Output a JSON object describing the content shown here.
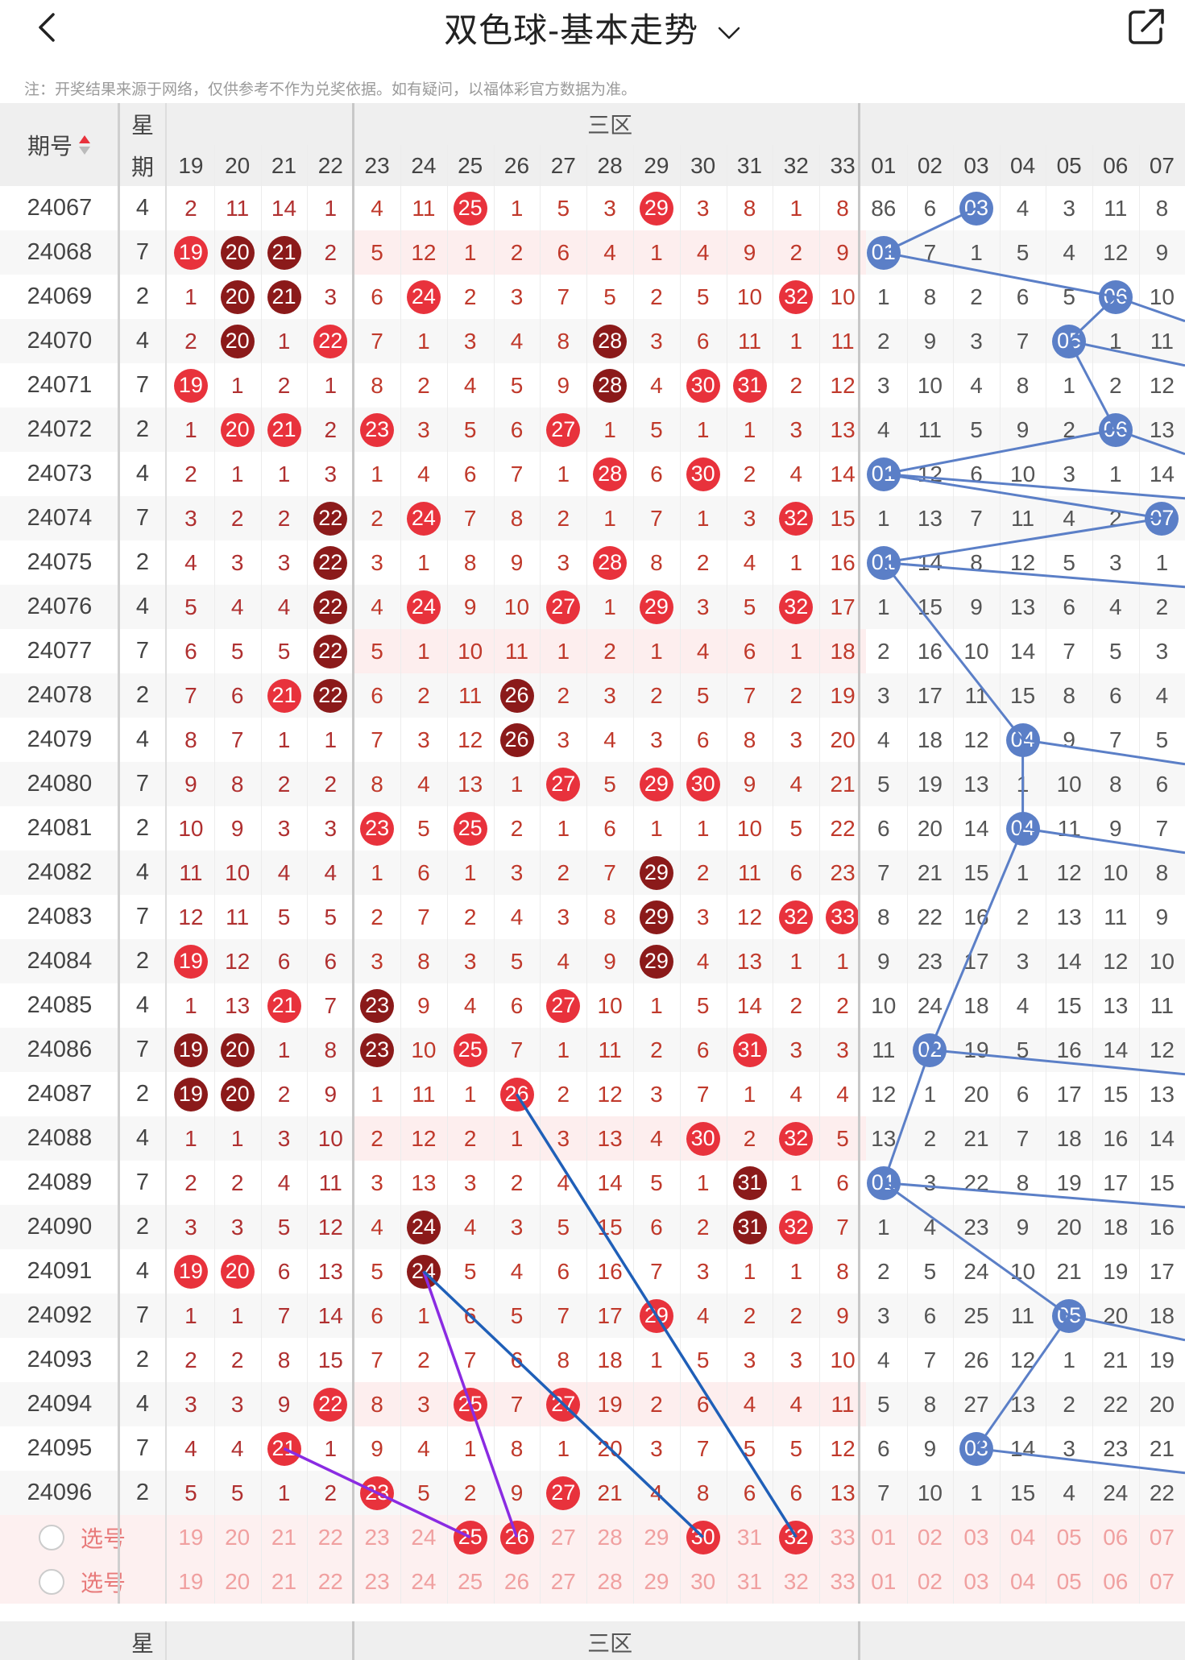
{
  "header": {
    "title": "双色球-基本走势",
    "back_icon": "chevron-left-icon",
    "share_icon": "share-icon",
    "dropdown_icon": "chevron-down-icon"
  },
  "note": "注：开奖结果来源于网络，仅供参考不作为兑奖依据。如有疑问，以福体彩官方数据为准。",
  "table": {
    "period_header": "期号",
    "week_header": [
      "星",
      "期"
    ],
    "zone3_label": "三区",
    "red_cols": [
      "19",
      "20",
      "21",
      "22",
      "23",
      "24",
      "25",
      "26",
      "27",
      "28",
      "29",
      "30",
      "31",
      "32",
      "33"
    ],
    "blue_cols": [
      "01",
      "02",
      "03",
      "04",
      "05",
      "06",
      "07"
    ],
    "select_label": "选号",
    "footer_dash": "-",
    "rows": [
      {
        "p": "24067",
        "w": "4",
        "r": [
          "2",
          "11",
          "14",
          "1",
          "4",
          "11",
          "25",
          "1",
          "5",
          "3",
          "29",
          "3",
          "8",
          "1",
          "8"
        ],
        "b": [
          "86",
          "6",
          "03",
          "4",
          "3",
          "11",
          "8"
        ]
      },
      {
        "p": "24068",
        "w": "7",
        "r": [
          "19",
          "20",
          "21",
          "2",
          "5",
          "12",
          "1",
          "2",
          "6",
          "4",
          "1",
          "4",
          "9",
          "2",
          "9"
        ],
        "b": [
          "01",
          "7",
          "1",
          "5",
          "4",
          "12",
          "9"
        ]
      },
      {
        "p": "24069",
        "w": "2",
        "r": [
          "1",
          "20",
          "21",
          "3",
          "6",
          "24",
          "2",
          "3",
          "7",
          "5",
          "2",
          "5",
          "10",
          "32",
          "10"
        ],
        "b": [
          "1",
          "8",
          "2",
          "6",
          "5",
          "06",
          "10"
        ]
      },
      {
        "p": "24070",
        "w": "4",
        "r": [
          "2",
          "20",
          "1",
          "22",
          "7",
          "1",
          "3",
          "4",
          "8",
          "28",
          "3",
          "6",
          "11",
          "1",
          "11"
        ],
        "b": [
          "2",
          "9",
          "3",
          "7",
          "05",
          "1",
          "11"
        ]
      },
      {
        "p": "24071",
        "w": "7",
        "r": [
          "19",
          "1",
          "2",
          "1",
          "8",
          "2",
          "4",
          "5",
          "9",
          "28",
          "4",
          "30",
          "31",
          "2",
          "12"
        ],
        "b": [
          "3",
          "10",
          "4",
          "8",
          "1",
          "2",
          "12"
        ]
      },
      {
        "p": "24072",
        "w": "2",
        "r": [
          "1",
          "20",
          "21",
          "2",
          "23",
          "3",
          "5",
          "6",
          "27",
          "1",
          "5",
          "1",
          "1",
          "3",
          "13"
        ],
        "b": [
          "4",
          "11",
          "5",
          "9",
          "2",
          "06",
          "13"
        ]
      },
      {
        "p": "24073",
        "w": "4",
        "r": [
          "2",
          "1",
          "1",
          "3",
          "1",
          "4",
          "6",
          "7",
          "1",
          "28",
          "6",
          "30",
          "2",
          "4",
          "14"
        ],
        "b": [
          "01",
          "12",
          "6",
          "10",
          "3",
          "1",
          "14"
        ]
      },
      {
        "p": "24074",
        "w": "7",
        "r": [
          "3",
          "2",
          "2",
          "22",
          "2",
          "24",
          "7",
          "8",
          "2",
          "1",
          "7",
          "1",
          "3",
          "32",
          "15"
        ],
        "b": [
          "1",
          "13",
          "7",
          "11",
          "4",
          "2",
          "07"
        ]
      },
      {
        "p": "24075",
        "w": "2",
        "r": [
          "4",
          "3",
          "3",
          "22",
          "3",
          "1",
          "8",
          "9",
          "3",
          "28",
          "8",
          "2",
          "4",
          "1",
          "16"
        ],
        "b": [
          "01",
          "14",
          "8",
          "12",
          "5",
          "3",
          "1"
        ]
      },
      {
        "p": "24076",
        "w": "4",
        "r": [
          "5",
          "4",
          "4",
          "22",
          "4",
          "24",
          "9",
          "10",
          "27",
          "1",
          "29",
          "3",
          "5",
          "32",
          "17"
        ],
        "b": [
          "1",
          "15",
          "9",
          "13",
          "6",
          "4",
          "2"
        ]
      },
      {
        "p": "24077",
        "w": "7",
        "r": [
          "6",
          "5",
          "5",
          "22",
          "5",
          "1",
          "10",
          "11",
          "1",
          "2",
          "1",
          "4",
          "6",
          "1",
          "18"
        ],
        "b": [
          "2",
          "16",
          "10",
          "14",
          "7",
          "5",
          "3"
        ]
      },
      {
        "p": "24078",
        "w": "2",
        "r": [
          "7",
          "6",
          "21",
          "22",
          "6",
          "2",
          "11",
          "26",
          "2",
          "3",
          "2",
          "5",
          "7",
          "2",
          "19"
        ],
        "b": [
          "3",
          "17",
          "11",
          "15",
          "8",
          "6",
          "4"
        ]
      },
      {
        "p": "24079",
        "w": "4",
        "r": [
          "8",
          "7",
          "1",
          "1",
          "7",
          "3",
          "12",
          "26",
          "3",
          "4",
          "3",
          "6",
          "8",
          "3",
          "20"
        ],
        "b": [
          "4",
          "18",
          "12",
          "04",
          "9",
          "7",
          "5"
        ]
      },
      {
        "p": "24080",
        "w": "7",
        "r": [
          "9",
          "8",
          "2",
          "2",
          "8",
          "4",
          "13",
          "1",
          "27",
          "5",
          "29",
          "30",
          "9",
          "4",
          "21"
        ],
        "b": [
          "5",
          "19",
          "13",
          "1",
          "10",
          "8",
          "6"
        ]
      },
      {
        "p": "24081",
        "w": "2",
        "r": [
          "10",
          "9",
          "3",
          "3",
          "23",
          "5",
          "25",
          "2",
          "1",
          "6",
          "1",
          "1",
          "10",
          "5",
          "22"
        ],
        "b": [
          "6",
          "20",
          "14",
          "04",
          "11",
          "9",
          "7"
        ]
      },
      {
        "p": "24082",
        "w": "4",
        "r": [
          "11",
          "10",
          "4",
          "4",
          "1",
          "6",
          "1",
          "3",
          "2",
          "7",
          "29",
          "2",
          "11",
          "6",
          "23"
        ],
        "b": [
          "7",
          "21",
          "15",
          "1",
          "12",
          "10",
          "8"
        ]
      },
      {
        "p": "24083",
        "w": "7",
        "r": [
          "12",
          "11",
          "5",
          "5",
          "2",
          "7",
          "2",
          "4",
          "3",
          "8",
          "29",
          "3",
          "12",
          "32",
          "33"
        ],
        "b": [
          "8",
          "22",
          "16",
          "2",
          "13",
          "11",
          "9"
        ]
      },
      {
        "p": "24084",
        "w": "2",
        "r": [
          "19",
          "12",
          "6",
          "6",
          "3",
          "8",
          "3",
          "5",
          "4",
          "9",
          "29",
          "4",
          "13",
          "1",
          "1"
        ],
        "b": [
          "9",
          "23",
          "17",
          "3",
          "14",
          "12",
          "10"
        ]
      },
      {
        "p": "24085",
        "w": "4",
        "r": [
          "1",
          "13",
          "21",
          "7",
          "23",
          "9",
          "4",
          "6",
          "27",
          "10",
          "1",
          "5",
          "14",
          "2",
          "2"
        ],
        "b": [
          "10",
          "24",
          "18",
          "4",
          "15",
          "13",
          "11"
        ]
      },
      {
        "p": "24086",
        "w": "7",
        "r": [
          "19",
          "20",
          "1",
          "8",
          "23",
          "10",
          "25",
          "7",
          "1",
          "11",
          "2",
          "6",
          "31",
          "3",
          "3"
        ],
        "b": [
          "11",
          "02",
          "19",
          "5",
          "16",
          "14",
          "12"
        ]
      },
      {
        "p": "24087",
        "w": "2",
        "r": [
          "19",
          "20",
          "2",
          "9",
          "1",
          "11",
          "1",
          "26",
          "2",
          "12",
          "3",
          "7",
          "1",
          "4",
          "4"
        ],
        "b": [
          "12",
          "1",
          "20",
          "6",
          "17",
          "15",
          "13"
        ]
      },
      {
        "p": "24088",
        "w": "4",
        "r": [
          "1",
          "1",
          "3",
          "10",
          "2",
          "12",
          "2",
          "1",
          "3",
          "13",
          "4",
          "30",
          "2",
          "32",
          "5"
        ],
        "b": [
          "13",
          "2",
          "21",
          "7",
          "18",
          "16",
          "14"
        ]
      },
      {
        "p": "24089",
        "w": "7",
        "r": [
          "2",
          "2",
          "4",
          "11",
          "3",
          "13",
          "3",
          "2",
          "4",
          "14",
          "5",
          "1",
          "31",
          "1",
          "6"
        ],
        "b": [
          "01",
          "3",
          "22",
          "8",
          "19",
          "17",
          "15"
        ]
      },
      {
        "p": "24090",
        "w": "2",
        "r": [
          "3",
          "3",
          "5",
          "12",
          "4",
          "24",
          "4",
          "3",
          "5",
          "15",
          "6",
          "2",
          "31",
          "32",
          "7"
        ],
        "b": [
          "1",
          "4",
          "23",
          "9",
          "20",
          "18",
          "16"
        ]
      },
      {
        "p": "24091",
        "w": "4",
        "r": [
          "19",
          "20",
          "6",
          "13",
          "5",
          "24",
          "5",
          "4",
          "6",
          "16",
          "7",
          "3",
          "1",
          "1",
          "8"
        ],
        "b": [
          "2",
          "5",
          "24",
          "10",
          "21",
          "19",
          "17"
        ]
      },
      {
        "p": "24092",
        "w": "7",
        "r": [
          "1",
          "1",
          "7",
          "14",
          "6",
          "1",
          "6",
          "5",
          "7",
          "17",
          "29",
          "4",
          "2",
          "2",
          "9"
        ],
        "b": [
          "3",
          "6",
          "25",
          "11",
          "05",
          "20",
          "18"
        ]
      },
      {
        "p": "24093",
        "w": "2",
        "r": [
          "2",
          "2",
          "8",
          "15",
          "7",
          "2",
          "7",
          "6",
          "8",
          "18",
          "1",
          "5",
          "3",
          "3",
          "10"
        ],
        "b": [
          "4",
          "7",
          "26",
          "12",
          "1",
          "21",
          "19"
        ]
      },
      {
        "p": "24094",
        "w": "4",
        "r": [
          "3",
          "3",
          "9",
          "22",
          "8",
          "3",
          "25",
          "7",
          "27",
          "19",
          "2",
          "6",
          "4",
          "4",
          "11"
        ],
        "b": [
          "5",
          "8",
          "27",
          "13",
          "2",
          "22",
          "20"
        ]
      },
      {
        "p": "24095",
        "w": "7",
        "r": [
          "4",
          "4",
          "21",
          "1",
          "9",
          "4",
          "1",
          "8",
          "1",
          "20",
          "3",
          "7",
          "5",
          "5",
          "12"
        ],
        "b": [
          "6",
          "9",
          "03",
          "14",
          "3",
          "23",
          "21"
        ]
      },
      {
        "p": "24096",
        "w": "2",
        "r": [
          "5",
          "5",
          "1",
          "2",
          "23",
          "5",
          "2",
          "9",
          "27",
          "21",
          "4",
          "8",
          "6",
          "6",
          "13"
        ],
        "b": [
          "7",
          "10",
          "1",
          "15",
          "4",
          "24",
          "22"
        ]
      }
    ]
  },
  "colors": {
    "red": "#e8323c",
    "dark_red": "#8b1a1a",
    "blue": "#5b7fc7",
    "blue_line": "#5b7fc7",
    "line_blue": "#1f5fb8",
    "line_purple": "#8a2be2",
    "row_pink": "#fdeeee",
    "select_pink": "#fdf0f0",
    "text": "#333333",
    "header_bg": "#efefef"
  },
  "sel_row1": {
    "red_balls": [
      "25",
      "26",
      "30",
      "32"
    ]
  },
  "lines_red": [
    {
      "color": "line_purple",
      "from": [
        "24095",
        "21"
      ],
      "to": [
        "sel",
        "25"
      ]
    },
    {
      "color": "line_purple",
      "from": [
        "24091",
        "24"
      ],
      "to": [
        "sel",
        "26"
      ]
    },
    {
      "color": "line_blue",
      "from": [
        "24091",
        "24"
      ],
      "to": [
        "sel",
        "30"
      ]
    },
    {
      "color": "line_blue",
      "from": [
        "24087",
        "26"
      ],
      "to": [
        "sel",
        "32"
      ]
    }
  ]
}
